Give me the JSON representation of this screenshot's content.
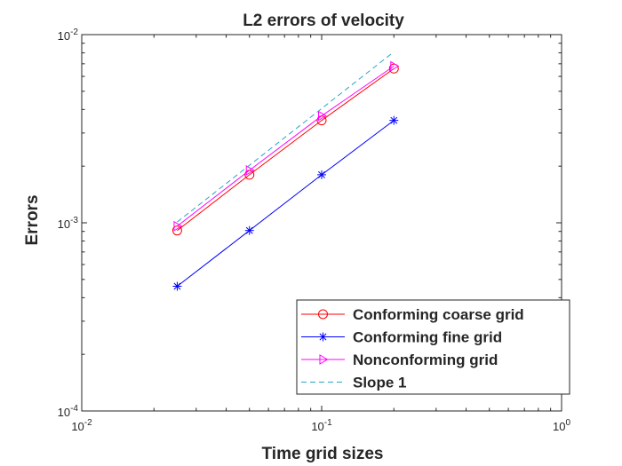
{
  "chart_data": {
    "type": "line",
    "title": "L2 errors of velocity",
    "xlabel": "Time grid sizes",
    "ylabel": "Errors",
    "xscale": "log",
    "yscale": "log",
    "xlim": [
      0.01,
      1
    ],
    "ylim": [
      0.0001,
      0.01
    ],
    "grid": false,
    "legend_location": "bottom-right",
    "x_ticks": [
      {
        "value": 0.01,
        "base": "10",
        "exp": "-2"
      },
      {
        "value": 0.1,
        "base": "10",
        "exp": "-1"
      },
      {
        "value": 1,
        "base": "10",
        "exp": "0"
      }
    ],
    "y_ticks": [
      {
        "value": 0.0001,
        "base": "10",
        "exp": "-4"
      },
      {
        "value": 0.001,
        "base": "10",
        "exp": "-3"
      },
      {
        "value": 0.01,
        "base": "10",
        "exp": "-2"
      }
    ],
    "series": [
      {
        "name": "Conforming coarse grid",
        "color": "#ff0000",
        "linestyle": "solid",
        "marker": "circle",
        "x": [
          0.025,
          0.05,
          0.1,
          0.2
        ],
        "y": [
          0.00091,
          0.0018,
          0.0035,
          0.0066
        ]
      },
      {
        "name": "Conforming fine grid",
        "color": "#0000ff",
        "linestyle": "solid",
        "marker": "asterisk",
        "x": [
          0.025,
          0.05,
          0.1,
          0.2
        ],
        "y": [
          0.00046,
          0.00091,
          0.0018,
          0.0035
        ]
      },
      {
        "name": "Nonconforming grid",
        "color": "#ff00ff",
        "linestyle": "solid",
        "marker": "triangle-right",
        "x": [
          0.025,
          0.05,
          0.1,
          0.2
        ],
        "y": [
          0.00096,
          0.0019,
          0.0037,
          0.0068
        ]
      },
      {
        "name": "Slope 1",
        "color": "#2aa6c4",
        "linestyle": "dashed",
        "marker": "none",
        "x": [
          0.025,
          0.2
        ],
        "y": [
          0.00101,
          0.0081
        ]
      }
    ]
  }
}
